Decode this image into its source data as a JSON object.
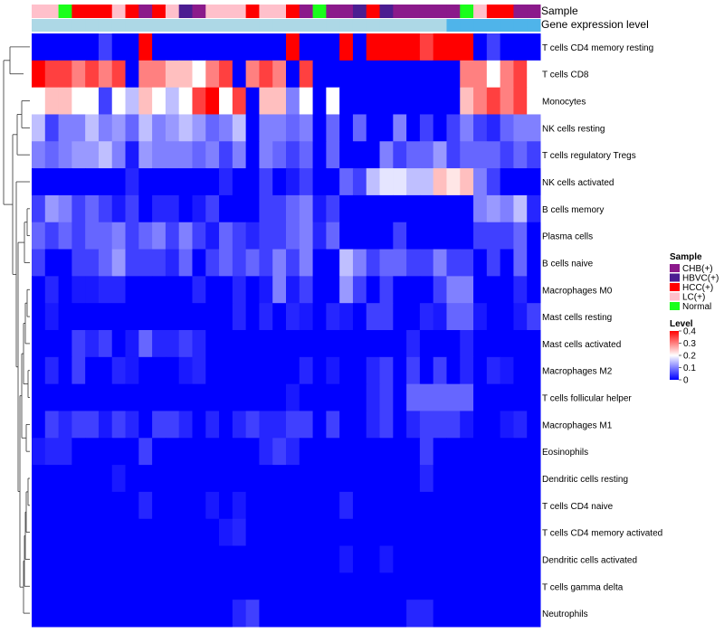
{
  "chart_data": {
    "type": "heatmap",
    "title": "",
    "annotation_rows": [
      "Sample",
      "Gene expression level"
    ],
    "row_labels": [
      "T cells CD4 memory resting",
      "T cells CD8",
      "Monocytes",
      "NK cells resting",
      "T cells regulatory  Tregs",
      "NK cells activated",
      "B cells memory",
      "Plasma cells",
      "B cells naive",
      "Macrophages M0",
      "Mast cells resting",
      "Mast cells activated",
      "Macrophages M2",
      "T cells follicular helper",
      "Macrophages M1",
      "Eosinophils",
      "Dendritic cells resting",
      "T cells CD4 naive",
      "T cells CD4 memory activated",
      "Dendritic cells activated",
      "T cells gamma delta",
      "Neutrophils"
    ],
    "sample_groups": [
      "LC(+)",
      "LC(+)",
      "Normal",
      "HCC(+)",
      "HCC(+)",
      "HCC(+)",
      "LC(+)",
      "HCC(+)",
      "CHB(+)",
      "HCC(+)",
      "LC(+)",
      "HBVC(+)",
      "CHB(+)",
      "LC(+)",
      "LC(+)",
      "LC(+)",
      "HCC(+)",
      "LC(+)",
      "LC(+)",
      "HCC(+)",
      "CHB(+)",
      "Normal",
      "CHB(+)",
      "CHB(+)",
      "HBVC(+)",
      "HCC(+)",
      "HBVC(+)",
      "CHB(+)",
      "CHB(+)",
      "CHB(+)",
      "CHB(+)",
      "CHB(+)",
      "Normal",
      "LC(+)",
      "HCC(+)",
      "HCC(+)",
      "CHB(+)",
      "CHB(+)"
    ],
    "expression_level": [
      0.2,
      0.2,
      0.2,
      0.2,
      0.2,
      0.2,
      0.2,
      0.2,
      0.2,
      0.2,
      0.2,
      0.2,
      0.2,
      0.2,
      0.2,
      0.2,
      0.2,
      0.2,
      0.2,
      0.2,
      0.2,
      0.2,
      0.2,
      0.2,
      0.2,
      0.2,
      0.2,
      0.2,
      0.2,
      0.2,
      0.2,
      0.25,
      0.25,
      0.25,
      0.25,
      0.25,
      0.25,
      0.25
    ],
    "values": [
      [
        0,
        0,
        0,
        0,
        0,
        0.05,
        0,
        0,
        0.4,
        0,
        0,
        0,
        0,
        0,
        0,
        0,
        0,
        0,
        0,
        0.4,
        0,
        0,
        0,
        0.4,
        0,
        0.4,
        0.4,
        0.4,
        0.4,
        0.35,
        0.4,
        0.4,
        0.4,
        0,
        0.05,
        0,
        0,
        0
      ],
      [
        0.4,
        0.35,
        0.35,
        0.3,
        0.35,
        0.3,
        0.35,
        0,
        0.3,
        0.3,
        0.25,
        0.25,
        0.2,
        0.3,
        0.35,
        0,
        0.3,
        0.35,
        0.3,
        0,
        0.35,
        0,
        0,
        0,
        0,
        0,
        0,
        0,
        0,
        0,
        0,
        0,
        0.3,
        0.3,
        0.2,
        0.3,
        0.35,
        0.2
      ],
      [
        0.2,
        0.25,
        0.25,
        0.2,
        0.2,
        0.05,
        0.2,
        0.15,
        0.25,
        0.2,
        0.15,
        0.2,
        0.35,
        0.4,
        0.2,
        0.35,
        0,
        0.25,
        0.25,
        0.1,
        0.2,
        0,
        0.2,
        0,
        0,
        0,
        0,
        0,
        0,
        0,
        0,
        0,
        0.25,
        0.3,
        0.35,
        0.3,
        0.35,
        0.2
      ],
      [
        0.15,
        0.05,
        0.1,
        0.1,
        0.15,
        0.1,
        0.12,
        0.08,
        0.15,
        0.1,
        0.12,
        0.15,
        0.12,
        0.08,
        0.1,
        0.15,
        0,
        0.1,
        0.1,
        0.08,
        0.1,
        0,
        0.08,
        0,
        0.08,
        0,
        0,
        0.1,
        0,
        0.05,
        0,
        0.05,
        0.1,
        0.05,
        0.03,
        0.08,
        0.1,
        0.1
      ],
      [
        0.1,
        0.08,
        0.1,
        0.12,
        0.12,
        0.15,
        0.1,
        0.02,
        0.12,
        0.1,
        0.1,
        0.1,
        0.08,
        0.1,
        0.05,
        0.1,
        0,
        0.1,
        0.08,
        0.05,
        0.08,
        0,
        0.08,
        0,
        0,
        0,
        0.1,
        0.05,
        0.08,
        0.08,
        0.12,
        0.05,
        0.08,
        0.08,
        0.08,
        0.05,
        0.08,
        0.05
      ],
      [
        0,
        0,
        0,
        0,
        0,
        0,
        0,
        0.03,
        0,
        0,
        0,
        0,
        0,
        0,
        0.03,
        0,
        0,
        0.05,
        0,
        0.02,
        0.05,
        0,
        0,
        0.08,
        0.05,
        0.15,
        0.18,
        0.18,
        0.15,
        0.15,
        0.25,
        0.22,
        0.25,
        0.1,
        0.05,
        0,
        0,
        0
      ],
      [
        0.05,
        0.12,
        0.1,
        0.05,
        0.08,
        0.05,
        0.02,
        0.05,
        0,
        0.03,
        0.03,
        0,
        0.02,
        0.05,
        0,
        0,
        0,
        0.05,
        0.05,
        0.08,
        0.1,
        0.02,
        0.05,
        0,
        0,
        0,
        0,
        0,
        0,
        0,
        0,
        0,
        0,
        0.1,
        0.12,
        0.1,
        0.15,
        0.03
      ],
      [
        0.08,
        0.05,
        0.08,
        0.05,
        0.08,
        0.08,
        0.1,
        0.05,
        0.08,
        0.1,
        0.05,
        0.1,
        0.05,
        0.02,
        0.08,
        0.05,
        0.03,
        0.05,
        0.05,
        0.08,
        0.1,
        0.03,
        0.08,
        0,
        0,
        0,
        0,
        0.05,
        0,
        0,
        0,
        0,
        0,
        0.05,
        0.05,
        0.05,
        0.08,
        0
      ],
      [
        0.05,
        0,
        0,
        0.05,
        0.05,
        0.08,
        0.12,
        0.05,
        0.05,
        0.05,
        0.03,
        0.08,
        0,
        0.05,
        0.08,
        0.05,
        0.08,
        0.05,
        0.1,
        0.05,
        0.1,
        0,
        0,
        0.15,
        0.1,
        0.05,
        0.08,
        0.08,
        0.05,
        0.05,
        0.1,
        0.05,
        0.05,
        0,
        0.05,
        0,
        0.08,
        0
      ],
      [
        0,
        0.03,
        0,
        0.02,
        0.02,
        0.03,
        0.03,
        0,
        0,
        0,
        0,
        0,
        0.03,
        0,
        0,
        0.03,
        0,
        0.02,
        0.1,
        0.02,
        0.05,
        0,
        0,
        0.12,
        0.05,
        0,
        0.05,
        0,
        0,
        0,
        0.05,
        0.1,
        0.1,
        0,
        0,
        0,
        0.03,
        0
      ],
      [
        0,
        0.02,
        0,
        0,
        0,
        0,
        0,
        0,
        0,
        0,
        0,
        0,
        0,
        0,
        0,
        0.03,
        0,
        0.03,
        0,
        0.03,
        0.02,
        0,
        0.03,
        0.02,
        0,
        0.05,
        0.05,
        0,
        0,
        0.03,
        0.02,
        0.08,
        0.08,
        0.02,
        0,
        0,
        0.02,
        0.05
      ],
      [
        0,
        0,
        0,
        0.05,
        0.03,
        0.05,
        0,
        0.02,
        0.08,
        0.03,
        0.03,
        0.05,
        0.03,
        0,
        0,
        0,
        0,
        0,
        0,
        0,
        0,
        0,
        0,
        0,
        0,
        0,
        0,
        0,
        0.03,
        0,
        0,
        0,
        0.03,
        0,
        0,
        0,
        0,
        0
      ],
      [
        0,
        0.03,
        0,
        0.05,
        0,
        0,
        0.03,
        0.02,
        0,
        0,
        0,
        0.02,
        0.03,
        0,
        0,
        0,
        0,
        0,
        0,
        0,
        0.03,
        0,
        0.02,
        0,
        0,
        0.03,
        0.05,
        0,
        0.05,
        0,
        0.05,
        0,
        0.03,
        0,
        0.03,
        0.02,
        0,
        0
      ],
      [
        0,
        0,
        0,
        0,
        0,
        0,
        0,
        0,
        0,
        0,
        0,
        0,
        0,
        0,
        0,
        0,
        0,
        0,
        0,
        0.02,
        0,
        0,
        0,
        0,
        0,
        0.03,
        0.05,
        0,
        0.08,
        0.08,
        0.08,
        0.08,
        0.08,
        0,
        0,
        0,
        0,
        0
      ],
      [
        0,
        0.05,
        0.03,
        0.05,
        0.05,
        0.02,
        0.05,
        0.03,
        0,
        0.05,
        0.05,
        0.03,
        0,
        0.03,
        0,
        0.03,
        0.05,
        0.03,
        0.03,
        0.05,
        0.05,
        0,
        0.05,
        0,
        0,
        0.03,
        0.05,
        0,
        0.03,
        0.05,
        0.05,
        0.05,
        0.02,
        0,
        0,
        0.02,
        0.03,
        0
      ],
      [
        0.02,
        0.03,
        0.03,
        0,
        0,
        0,
        0,
        0,
        0.05,
        0,
        0,
        0,
        0,
        0,
        0,
        0,
        0,
        0.03,
        0.05,
        0.03,
        0,
        0,
        0,
        0,
        0,
        0,
        0,
        0,
        0,
        0.05,
        0,
        0,
        0,
        0,
        0,
        0,
        0,
        0
      ],
      [
        0,
        0,
        0,
        0,
        0,
        0,
        0.02,
        0,
        0,
        0,
        0,
        0,
        0,
        0,
        0,
        0,
        0,
        0,
        0,
        0,
        0,
        0,
        0,
        0,
        0,
        0,
        0,
        0,
        0,
        0.03,
        0,
        0,
        0,
        0,
        0,
        0,
        0,
        0
      ],
      [
        0,
        0,
        0,
        0,
        0,
        0,
        0,
        0,
        0.03,
        0,
        0,
        0,
        0,
        0.02,
        0,
        0.02,
        0,
        0,
        0,
        0,
        0,
        0,
        0,
        0.03,
        0,
        0,
        0,
        0,
        0,
        0,
        0,
        0,
        0,
        0,
        0,
        0,
        0,
        0
      ],
      [
        0,
        0,
        0,
        0,
        0,
        0,
        0,
        0,
        0,
        0,
        0,
        0,
        0,
        0,
        0.02,
        0.03,
        0,
        0,
        0,
        0,
        0,
        0,
        0,
        0,
        0,
        0,
        0,
        0,
        0,
        0,
        0,
        0,
        0,
        0,
        0,
        0,
        0,
        0
      ],
      [
        0,
        0,
        0,
        0,
        0,
        0,
        0,
        0,
        0,
        0,
        0,
        0,
        0,
        0,
        0,
        0,
        0,
        0,
        0,
        0,
        0,
        0,
        0,
        0.02,
        0,
        0,
        0.02,
        0,
        0,
        0,
        0,
        0,
        0,
        0,
        0,
        0,
        0,
        0
      ],
      [
        0,
        0,
        0,
        0,
        0,
        0,
        0,
        0,
        0,
        0,
        0,
        0,
        0,
        0,
        0,
        0,
        0,
        0,
        0,
        0,
        0,
        0,
        0,
        0,
        0,
        0,
        0,
        0,
        0,
        0,
        0,
        0,
        0,
        0,
        0,
        0,
        0,
        0
      ],
      [
        0,
        0,
        0,
        0,
        0,
        0,
        0,
        0,
        0,
        0,
        0,
        0,
        0,
        0,
        0,
        0.03,
        0.05,
        0,
        0,
        0,
        0,
        0,
        0,
        0,
        0,
        0,
        0,
        0,
        0.03,
        0.03,
        0,
        0,
        0,
        0,
        0,
        0,
        0,
        0
      ]
    ],
    "legend": {
      "sample_title": "Sample",
      "sample_entries": [
        {
          "label": "CHB(+)",
          "color": "#8b1a8b"
        },
        {
          "label": "HBVC(+)",
          "color": "#4b1d91"
        },
        {
          "label": "HCC(+)",
          "color": "#ff0000"
        },
        {
          "label": "LC(+)",
          "color": "#ffc0cb"
        },
        {
          "label": "Normal",
          "color": "#1aff1a"
        }
      ],
      "level_title": "Level",
      "level_ticks": [
        "0.4",
        "0.3",
        "0.2",
        "0.1",
        "0"
      ],
      "level_range": [
        0,
        0.4
      ],
      "placement": "right"
    },
    "color_scale": {
      "low": "#0000ff",
      "mid": "#ffffff",
      "high": "#ff0000",
      "domain": [
        0,
        0.2,
        0.4
      ]
    },
    "expression_scale": {
      "low": "#add8e6",
      "high": "#4fb4ea",
      "domain": [
        0.2,
        0.25
      ]
    }
  }
}
